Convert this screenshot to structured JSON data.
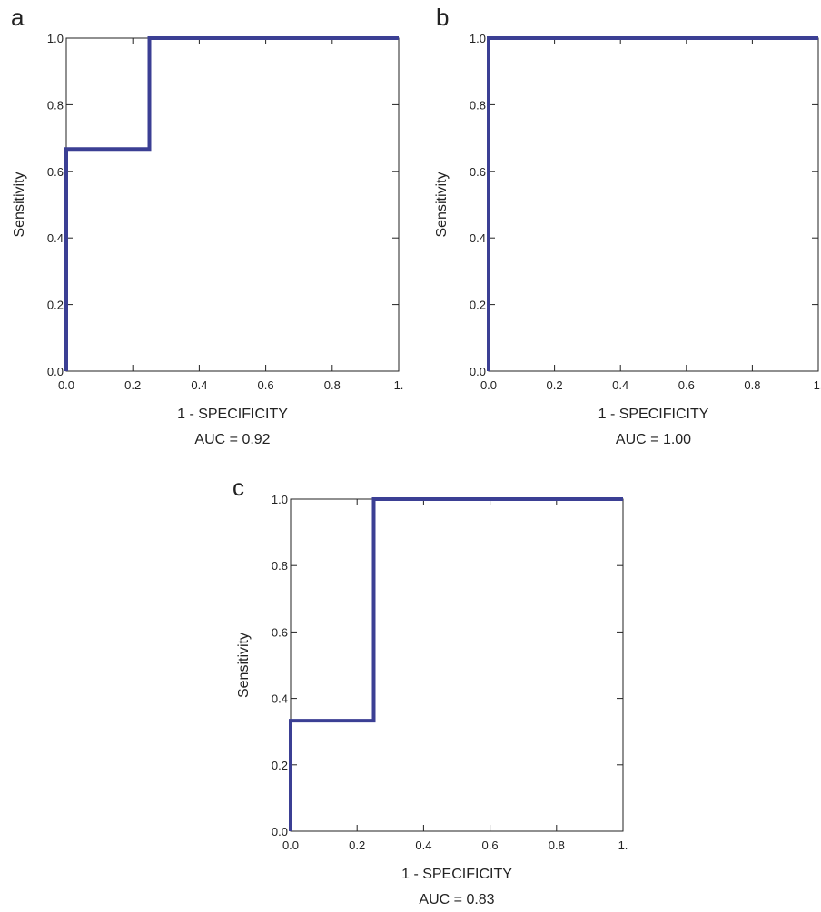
{
  "figure": {
    "line_color": "#3b3f94",
    "axis_color": "#222222"
  },
  "chart_data": [
    {
      "type": "line",
      "panel": "a",
      "xlabel": "1 - SPECIFICITY",
      "ylabel": "Sensitivity",
      "annotation": "AUC = 0.92",
      "xlim": [
        0,
        1
      ],
      "ylim": [
        0,
        1
      ],
      "x_tick_labels": [
        "0.0",
        "0.2",
        "0.4",
        "0.6",
        "0.8",
        "1."
      ],
      "y_tick_labels": [
        "0.0",
        "0.2",
        "0.4",
        "0.6",
        "0.8",
        "1.0"
      ],
      "grid": false,
      "series": [
        {
          "x": [
            0.0,
            0.0,
            0.25,
            0.25,
            1.0
          ],
          "y": [
            0.0,
            0.667,
            0.667,
            1.0,
            1.0
          ]
        }
      ]
    },
    {
      "type": "line",
      "panel": "b",
      "xlabel": "1 - SPECIFICITY",
      "ylabel": "Sensitivity",
      "annotation": "AUC = 1.00",
      "xlim": [
        0,
        1
      ],
      "ylim": [
        0,
        1
      ],
      "x_tick_labels": [
        "0.0",
        "0.2",
        "0.4",
        "0.6",
        "0.8",
        "1."
      ],
      "y_tick_labels": [
        "0.0",
        "0.2",
        "0.4",
        "0.6",
        "0.8",
        "1.0"
      ],
      "grid": false,
      "series": [
        {
          "x": [
            0.0,
            0.0,
            1.0
          ],
          "y": [
            0.0,
            1.0,
            1.0
          ]
        }
      ]
    },
    {
      "type": "line",
      "panel": "c",
      "xlabel": "1 - SPECIFICITY",
      "ylabel": "Sensitivity",
      "annotation": "AUC = 0.83",
      "xlim": [
        0,
        1
      ],
      "ylim": [
        0,
        1
      ],
      "x_tick_labels": [
        "0.0",
        "0.2",
        "0.4",
        "0.6",
        "0.8",
        "1."
      ],
      "y_tick_labels": [
        "0.0",
        "0.2",
        "0.4",
        "0.6",
        "0.8",
        "1.0"
      ],
      "grid": false,
      "series": [
        {
          "x": [
            0.0,
            0.0,
            0.25,
            0.25,
            1.0
          ],
          "y": [
            0.0,
            0.333,
            0.333,
            1.0,
            1.0
          ]
        }
      ]
    }
  ]
}
